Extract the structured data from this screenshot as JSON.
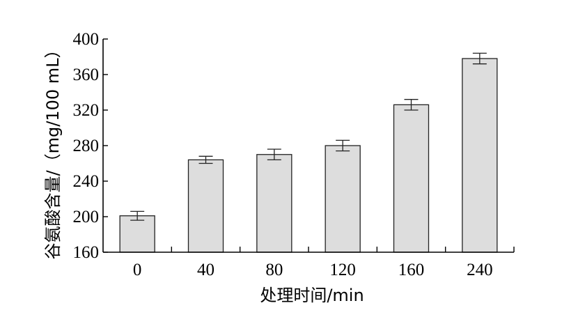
{
  "chart_data": {
    "type": "bar",
    "categories": [
      "0",
      "40",
      "80",
      "120",
      "160",
      "240"
    ],
    "values": [
      201,
      264,
      270,
      280,
      326,
      378
    ],
    "errors": [
      5,
      4,
      6,
      6,
      6,
      6
    ],
    "xlabel": "处理时间/min",
    "ylabel": "谷氨酸含量/（mg/100 mL）",
    "ylim": [
      160,
      400
    ],
    "yticks": [
      160,
      200,
      240,
      280,
      320,
      360,
      400
    ],
    "bar_color": "#dddddd",
    "grid": false
  }
}
